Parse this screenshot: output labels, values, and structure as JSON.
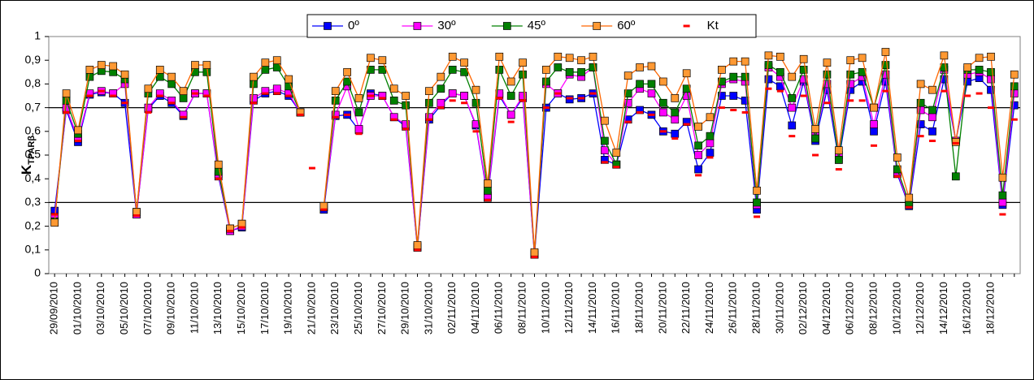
{
  "chart_data": {
    "type": "line",
    "y_label": "K",
    "y_label_sub": "TPARβ",
    "categories": [
      "29/09/2010",
      null,
      "01/10/2010",
      null,
      "03/10/2010",
      null,
      "05/10/2010",
      null,
      "07/10/2010",
      null,
      "09/10/2010",
      null,
      "11/10/2010",
      null,
      "13/10/2010",
      null,
      "15/10/2010",
      null,
      "17/10/2010",
      null,
      "19/10/2010",
      null,
      "21/10/2010",
      null,
      "23/10/2010",
      null,
      "25/10/2010",
      null,
      "27/10/2010",
      null,
      "29/10/2010",
      null,
      "31/10/2010",
      null,
      "02/11/2010",
      null,
      "04/11/2010",
      null,
      "06/11/2010",
      null,
      "08/11/2010",
      null,
      "10/11/2010",
      null,
      "12/11/2010",
      null,
      "14/11/2010",
      null,
      "16/11/2010",
      null,
      "18/11/2010",
      null,
      "20/11/2010",
      null,
      "22/11/2010",
      null,
      "24/11/2010",
      null,
      "26/11/2010",
      null,
      "28/11/2010",
      null,
      "30/11/2010",
      null,
      "02/12/2010",
      null,
      "04/12/2010",
      null,
      "06/12/2010",
      null,
      "08/12/2010",
      null,
      "10/12/2010",
      null,
      "12/12/2010",
      null,
      "14/12/2010",
      null,
      "16/12/2010",
      null,
      "18/12/2010",
      null,
      null
    ],
    "series": [
      {
        "name": "0º",
        "color": "#0000ff",
        "marker": "#0000ff",
        "values": [
          0.265,
          0.69,
          0.555,
          0.755,
          0.765,
          0.76,
          0.72,
          0.25,
          0.695,
          0.75,
          0.72,
          0.665,
          0.76,
          0.76,
          0.41,
          0.18,
          0.195,
          0.73,
          0.76,
          0.77,
          0.75,
          0.68,
          null,
          0.27,
          0.665,
          0.67,
          0.605,
          0.76,
          0.75,
          0.66,
          0.62,
          0.11,
          0.65,
          0.71,
          0.76,
          0.75,
          0.625,
          0.32,
          0.75,
          0.67,
          0.74,
          0.08,
          0.7,
          0.76,
          0.735,
          0.74,
          0.76,
          0.48,
          0.46,
          0.65,
          0.69,
          0.67,
          0.6,
          0.59,
          0.64,
          0.44,
          0.51,
          0.75,
          0.75,
          0.73,
          0.27,
          0.82,
          0.79,
          0.625,
          0.81,
          0.56,
          0.775,
          0.48,
          0.775,
          0.81,
          0.6,
          0.81,
          0.42,
          0.285,
          0.63,
          0.6,
          0.82,
          0.56,
          0.81,
          0.825,
          0.775,
          0.29,
          0.71
        ]
      },
      {
        "name": "30º",
        "color": "#ff00ff",
        "marker": "#ff00ff",
        "values": [
          0.24,
          0.7,
          0.57,
          0.76,
          0.77,
          0.76,
          0.8,
          0.25,
          0.7,
          0.76,
          0.73,
          0.67,
          0.76,
          0.76,
          0.42,
          0.18,
          0.2,
          0.74,
          0.77,
          0.78,
          0.76,
          0.68,
          null,
          0.28,
          0.67,
          0.79,
          0.61,
          0.75,
          0.75,
          0.66,
          0.63,
          0.11,
          0.66,
          0.72,
          0.76,
          0.75,
          0.63,
          0.33,
          0.76,
          0.67,
          0.75,
          0.08,
          0.8,
          0.76,
          0.84,
          0.83,
          0.87,
          0.52,
          0.46,
          0.72,
          0.78,
          0.76,
          0.68,
          0.65,
          0.75,
          0.5,
          0.55,
          0.8,
          0.82,
          0.81,
          0.29,
          0.87,
          0.83,
          0.7,
          0.82,
          0.58,
          0.8,
          0.5,
          0.8,
          0.83,
          0.63,
          0.84,
          0.43,
          0.29,
          0.69,
          0.66,
          0.86,
          0.56,
          0.84,
          0.85,
          0.82,
          0.3,
          0.76
        ]
      },
      {
        "name": "45º",
        "color": "#008000",
        "marker": "#008000",
        "values": [
          0.22,
          0.73,
          0.59,
          0.83,
          0.855,
          0.85,
          0.82,
          0.26,
          0.76,
          0.83,
          0.8,
          0.74,
          0.85,
          0.85,
          0.43,
          0.19,
          0.21,
          0.8,
          0.86,
          0.87,
          0.79,
          0.68,
          null,
          0.28,
          0.73,
          0.81,
          0.68,
          0.86,
          0.86,
          0.73,
          0.71,
          0.115,
          0.72,
          0.78,
          0.86,
          0.85,
          0.72,
          0.35,
          0.86,
          0.75,
          0.84,
          0.085,
          0.81,
          0.87,
          0.85,
          0.85,
          0.87,
          0.56,
          0.46,
          0.76,
          0.8,
          0.8,
          0.72,
          0.68,
          0.78,
          0.54,
          0.58,
          0.81,
          0.83,
          0.83,
          0.3,
          0.88,
          0.85,
          0.74,
          0.86,
          0.57,
          0.84,
          0.48,
          0.84,
          0.85,
          0.7,
          0.88,
          0.44,
          0.3,
          0.72,
          0.69,
          0.87,
          0.41,
          0.86,
          0.86,
          0.85,
          0.33,
          0.79
        ]
      },
      {
        "name": "60º",
        "color": "#ff6600",
        "marker": "#ff9933",
        "values": [
          0.215,
          0.76,
          0.605,
          0.86,
          0.88,
          0.875,
          0.84,
          0.26,
          0.78,
          0.86,
          0.83,
          0.77,
          0.88,
          0.88,
          0.46,
          0.19,
          0.21,
          0.83,
          0.89,
          0.9,
          0.82,
          0.68,
          null,
          0.285,
          0.77,
          0.85,
          0.74,
          0.91,
          0.9,
          0.78,
          0.75,
          0.12,
          0.77,
          0.83,
          0.915,
          0.89,
          0.775,
          0.38,
          0.915,
          0.81,
          0.89,
          0.09,
          0.86,
          0.915,
          0.91,
          0.9,
          0.915,
          0.645,
          0.51,
          0.835,
          0.87,
          0.875,
          0.81,
          0.74,
          0.845,
          0.62,
          0.66,
          0.86,
          0.895,
          0.895,
          0.35,
          0.92,
          0.915,
          0.83,
          0.905,
          0.61,
          0.89,
          0.52,
          0.9,
          0.91,
          0.7,
          0.935,
          0.49,
          0.32,
          0.8,
          0.775,
          0.92,
          0.555,
          0.87,
          0.91,
          0.915,
          0.405,
          0.84
        ]
      },
      {
        "name": "Kt",
        "color": "#ff0000",
        "marker": "#ff0000",
        "dash": true,
        "values": [
          0.25,
          0.68,
          0.56,
          0.75,
          0.77,
          0.75,
          0.72,
          0.245,
          0.68,
          0.75,
          0.72,
          0.66,
          0.76,
          0.75,
          0.4,
          0.18,
          0.195,
          0.72,
          0.76,
          0.76,
          0.75,
          0.67,
          0.445,
          0.27,
          0.66,
          0.67,
          0.59,
          0.75,
          0.74,
          0.65,
          0.61,
          0.1,
          0.65,
          0.7,
          0.73,
          0.72,
          0.6,
          0.31,
          0.74,
          0.64,
          0.73,
          0.07,
          0.7,
          0.76,
          0.74,
          0.74,
          0.76,
          0.47,
          0.45,
          0.64,
          0.68,
          0.67,
          0.6,
          0.57,
          0.63,
          0.415,
          0.49,
          0.7,
          0.69,
          0.68,
          0.24,
          0.78,
          0.77,
          0.58,
          0.75,
          0.5,
          0.72,
          0.44,
          0.73,
          0.73,
          0.54,
          0.77,
          0.41,
          0.28,
          0.58,
          0.56,
          0.77,
          0.55,
          0.75,
          0.76,
          0.7,
          0.25,
          0.65
        ]
      }
    ],
    "ylim": [
      0,
      1
    ],
    "yticks": [
      0,
      {
        "value": 0.1,
        "label": "0,1"
      },
      {
        "value": 0.2,
        "label": "0,2"
      },
      {
        "value": 0.3,
        "label": "0,3"
      },
      {
        "value": 0.4,
        "label": "0,4"
      },
      {
        "value": 0.5,
        "label": "0,5"
      },
      {
        "value": 0.6,
        "label": "0,6"
      },
      {
        "value": 0.7,
        "label": "0,7"
      },
      {
        "value": 0.8,
        "label": "0,8"
      },
      {
        "value": 0.9,
        "label": "0,9"
      },
      1
    ],
    "reference_lines": [
      0.3,
      0.7
    ],
    "legend": "top"
  }
}
